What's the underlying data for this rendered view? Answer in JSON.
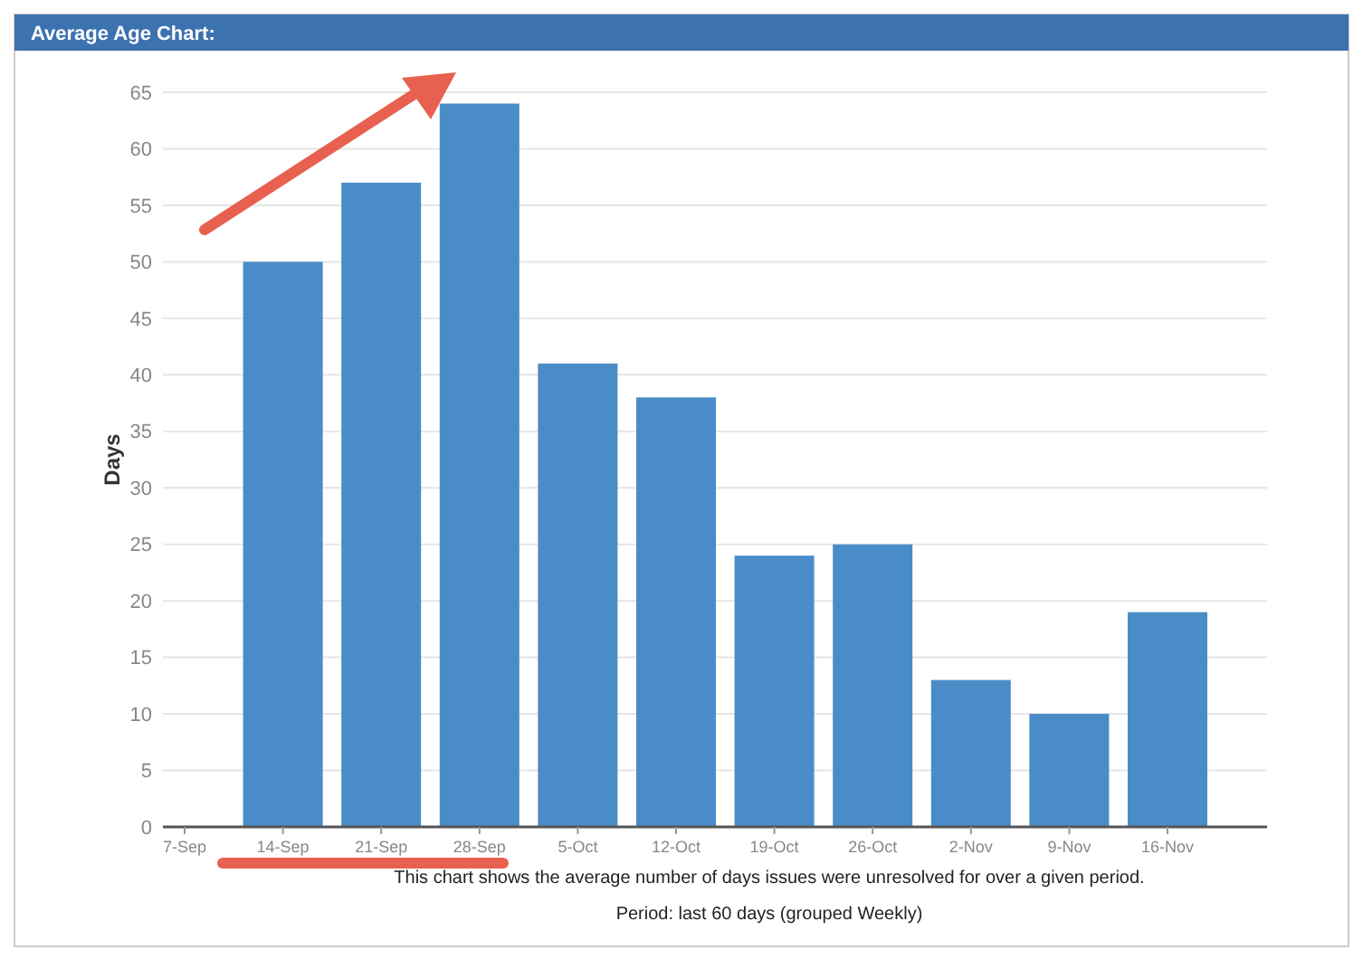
{
  "chart_data": {
    "type": "bar",
    "title": "Average Age Chart:",
    "ylabel": "Days",
    "categories": [
      "7-Sep",
      "14-Sep",
      "21-Sep",
      "28-Sep",
      "5-Oct",
      "12-Oct",
      "19-Oct",
      "26-Oct",
      "2-Nov",
      "9-Nov",
      "16-Nov"
    ],
    "values": [
      null,
      50,
      57,
      64,
      41,
      38,
      24,
      25,
      13,
      10,
      19
    ],
    "color": "#4a8cc7",
    "ylim": [
      0,
      65
    ],
    "yticks": [
      0,
      5,
      10,
      15,
      20,
      25,
      30,
      35,
      40,
      45,
      50,
      55,
      60,
      65
    ],
    "grid": "y",
    "annotations": [
      "This chart shows the average number of days issues were unresolved for over a given period.",
      "Period: last 60 days (grouped Weekly)"
    ]
  }
}
